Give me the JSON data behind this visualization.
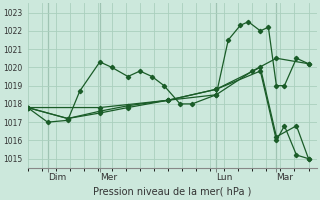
{
  "background_color": "#cce8dc",
  "grid_color": "#aacfbe",
  "line_color": "#1a5c28",
  "marker_color": "#1a5c28",
  "title": "Pression niveau de la mer( hPa )",
  "ylim": [
    1014.5,
    1023.5
  ],
  "yticks": [
    1015,
    1016,
    1017,
    1018,
    1019,
    1020,
    1021,
    1022,
    1023
  ],
  "xlim": [
    0,
    72
  ],
  "day_ticks": [
    5,
    18,
    47,
    62
  ],
  "day_labels": [
    "Dim",
    "Mer",
    "Lun",
    "Mar"
  ],
  "vline_positions": [
    5,
    18,
    47,
    62
  ],
  "line1_jagged": {
    "x": [
      0,
      5,
      10,
      13,
      18,
      21,
      25,
      28,
      31,
      34,
      38,
      41,
      47,
      50,
      53,
      55,
      58,
      60,
      62,
      64,
      67,
      70
    ],
    "y": [
      1017.8,
      1017.0,
      1017.1,
      1018.7,
      1020.3,
      1020.0,
      1019.5,
      1019.8,
      1019.5,
      1019.0,
      1018.0,
      1018.0,
      1018.5,
      1021.5,
      1022.3,
      1022.5,
      1022.0,
      1022.2,
      1019.0,
      1019.0,
      1020.5,
      1020.2
    ]
  },
  "line2_slow": {
    "x": [
      0,
      10,
      18,
      25,
      35,
      47,
      56,
      62,
      70
    ],
    "y": [
      1017.8,
      1017.2,
      1017.5,
      1017.8,
      1018.2,
      1018.5,
      1019.8,
      1020.5,
      1020.2
    ]
  },
  "line3_decline": {
    "x": [
      0,
      10,
      18,
      25,
      35,
      47,
      58,
      62,
      64,
      67,
      70
    ],
    "y": [
      1017.8,
      1017.2,
      1017.6,
      1017.9,
      1018.2,
      1018.8,
      1019.8,
      1016.0,
      1016.8,
      1015.2,
      1015.0
    ]
  },
  "line4_flat_decline": {
    "x": [
      0,
      18,
      35,
      47,
      58,
      62,
      67,
      70
    ],
    "y": [
      1017.8,
      1017.8,
      1018.2,
      1018.8,
      1020.0,
      1016.2,
      1016.8,
      1015.0
    ]
  }
}
